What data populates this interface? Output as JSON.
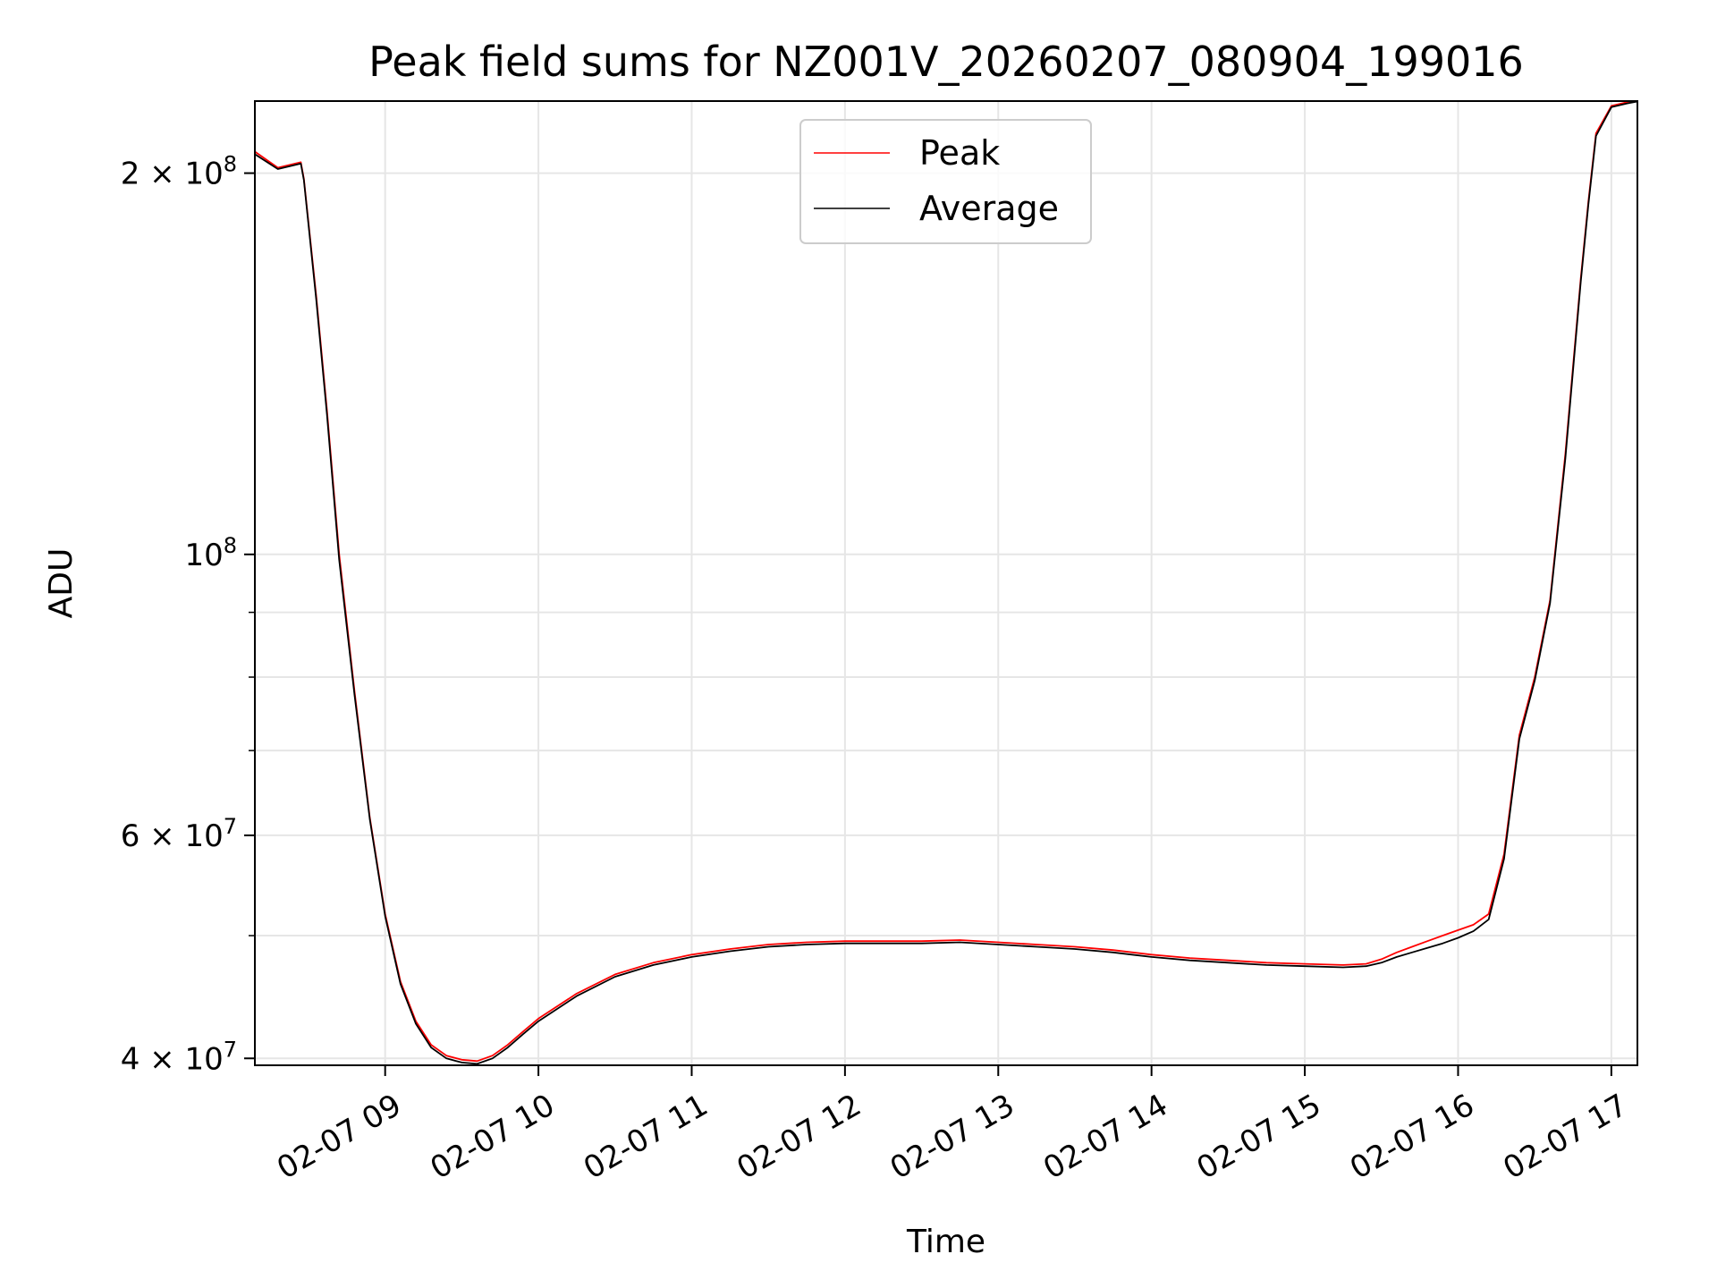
{
  "chart_data": {
    "type": "line",
    "title": "Peak field sums for NZ001V_20260207_080904_199016",
    "xlabel": "Time",
    "ylabel": "ADU",
    "yscale": "log",
    "xlim_hours": [
      8.15,
      17.17
    ],
    "ylim": [
      39500000,
      228000000
    ],
    "grid": true,
    "legend_position": "upper-center",
    "x_tick_values": [
      9,
      10,
      11,
      12,
      13,
      14,
      15,
      16,
      17
    ],
    "x_tick_labels": [
      "02-07 09",
      "02-07 10",
      "02-07 11",
      "02-07 12",
      "02-07 13",
      "02-07 14",
      "02-07 15",
      "02-07 16",
      "02-07 17"
    ],
    "y_ticks": [
      {
        "value": 200000000,
        "base": "2 × 10",
        "exp": "8"
      },
      {
        "value": 100000000,
        "base": "10",
        "exp": "8"
      },
      {
        "value": 60000000,
        "base": "6 × 10",
        "exp": "7"
      },
      {
        "value": 40000000,
        "base": "4 × 10",
        "exp": "7"
      }
    ],
    "y_minor_ticks": [
      50000000,
      70000000,
      80000000,
      90000000
    ],
    "series": [
      {
        "name": "Peak",
        "color": "#ff0000",
        "x": [
          8.15,
          8.3,
          8.45,
          8.47,
          8.55,
          8.62,
          8.7,
          8.8,
          8.9,
          9.0,
          9.1,
          9.2,
          9.3,
          9.4,
          9.5,
          9.6,
          9.7,
          9.8,
          9.9,
          10.0,
          10.25,
          10.5,
          10.75,
          11.0,
          11.25,
          11.5,
          11.75,
          12.0,
          12.25,
          12.5,
          12.75,
          13.0,
          13.25,
          13.5,
          13.75,
          14.0,
          14.25,
          14.5,
          14.75,
          15.0,
          15.25,
          15.4,
          15.5,
          15.6,
          15.7,
          15.8,
          15.9,
          16.0,
          16.1,
          16.2,
          16.3,
          16.4,
          16.5,
          16.6,
          16.7,
          16.8,
          16.85,
          16.9,
          17.0,
          17.1,
          17.17
        ],
        "values": [
          208000000,
          202000000,
          204000000,
          198000000,
          160000000,
          130000000,
          100000000,
          78000000,
          62000000,
          52000000,
          46000000,
          42800000,
          41000000,
          40200000,
          39900000,
          39800000,
          40200000,
          41000000,
          42000000,
          43000000,
          45000000,
          46600000,
          47600000,
          48300000,
          48800000,
          49200000,
          49400000,
          49500000,
          49500000,
          49500000,
          49600000,
          49400000,
          49200000,
          49000000,
          48700000,
          48300000,
          48000000,
          47800000,
          47600000,
          47500000,
          47400000,
          47500000,
          47900000,
          48500000,
          49000000,
          49500000,
          50000000,
          50500000,
          51000000,
          52000000,
          58000000,
          72000000,
          80000000,
          92000000,
          120000000,
          165000000,
          190000000,
          215000000,
          226000000,
          227500000,
          228000000
        ]
      },
      {
        "name": "Average",
        "color": "#000000",
        "x": [
          8.15,
          8.3,
          8.45,
          8.47,
          8.55,
          8.62,
          8.7,
          8.8,
          8.9,
          9.0,
          9.1,
          9.2,
          9.3,
          9.4,
          9.5,
          9.6,
          9.7,
          9.8,
          9.9,
          10.0,
          10.25,
          10.5,
          10.75,
          11.0,
          11.25,
          11.5,
          11.75,
          12.0,
          12.25,
          12.5,
          12.75,
          13.0,
          13.25,
          13.5,
          13.75,
          14.0,
          14.25,
          14.5,
          14.75,
          15.0,
          15.25,
          15.4,
          15.5,
          15.6,
          15.7,
          15.8,
          15.9,
          16.0,
          16.1,
          16.2,
          16.3,
          16.4,
          16.5,
          16.6,
          16.7,
          16.8,
          16.85,
          16.9,
          17.0,
          17.1,
          17.17
        ],
        "values": [
          207000000,
          201500000,
          203500000,
          197500000,
          159000000,
          129000000,
          99000000,
          77500000,
          61800000,
          51800000,
          45800000,
          42600000,
          40800000,
          40000000,
          39700000,
          39600000,
          40000000,
          40800000,
          41800000,
          42800000,
          44800000,
          46400000,
          47400000,
          48100000,
          48600000,
          49000000,
          49200000,
          49300000,
          49300000,
          49300000,
          49400000,
          49200000,
          49000000,
          48800000,
          48500000,
          48100000,
          47800000,
          47600000,
          47400000,
          47300000,
          47200000,
          47300000,
          47600000,
          48100000,
          48500000,
          48900000,
          49300000,
          49800000,
          50400000,
          51500000,
          57500000,
          71500000,
          79500000,
          91500000,
          119000000,
          164000000,
          189000000,
          214000000,
          225500000,
          227000000,
          227800000
        ]
      }
    ]
  }
}
